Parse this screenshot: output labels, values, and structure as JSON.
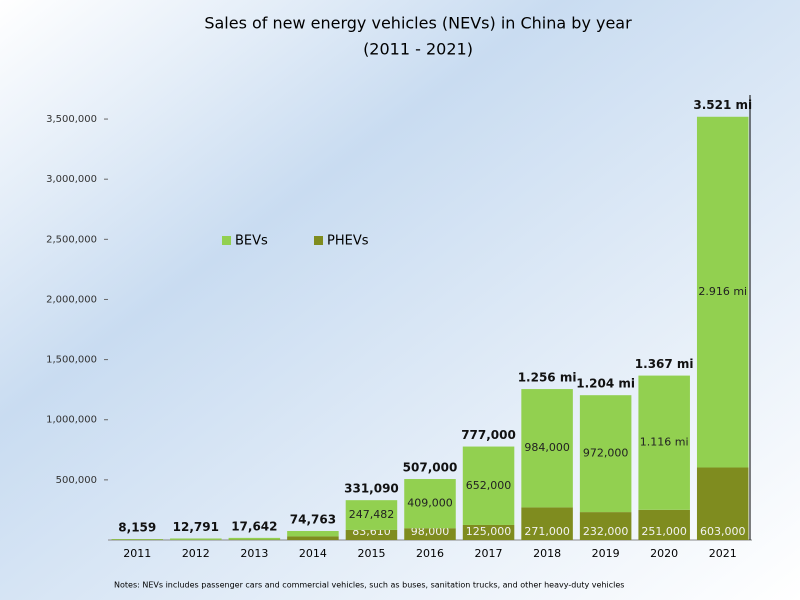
{
  "chart_data": {
    "type": "stacked-bar",
    "title": "Sales of new energy vehicles (NEVs) in China by year",
    "subtitle": "(2011 - 2021)",
    "categories": [
      "2011",
      "2012",
      "2013",
      "2014",
      "2015",
      "2016",
      "2017",
      "2018",
      "2019",
      "2020",
      "2021"
    ],
    "series": [
      {
        "name": "PHEVs",
        "color": "#7f8c1f",
        "values": [
          2580,
          1416,
          3038,
          29715,
          83610,
          98000,
          125000,
          271000,
          232000,
          251000,
          603000
        ],
        "value_labels": [
          null,
          null,
          null,
          null,
          "83,610",
          "98,000",
          "125,000",
          "271,000",
          "232,000",
          "251,000",
          "603,000"
        ]
      },
      {
        "name": "BEVs",
        "color": "#92d050",
        "values": [
          5579,
          11375,
          14604,
          45048,
          247482,
          409000,
          652000,
          984000,
          972000,
          1116000,
          2916000
        ],
        "value_labels": [
          null,
          null,
          null,
          null,
          "247,482",
          "409,000",
          "652,000",
          "984,000",
          "972,000",
          "1.116 mi",
          "2.916 mi"
        ]
      }
    ],
    "totals": [
      8159,
      12791,
      17642,
      74763,
      331090,
      507000,
      777000,
      1256000,
      1204000,
      1367000,
      3521000
    ],
    "total_labels": [
      "8,159",
      "12,791",
      "17,642",
      "74,763",
      "331,090",
      "507,000",
      "777,000",
      "1.256 mi",
      "1.204 mi",
      "1.367 mi",
      "3.521 mi"
    ],
    "ylim": [
      0,
      3700000
    ],
    "yticks": [
      {
        "value": 500000,
        "label": "500,000"
      },
      {
        "value": 1000000,
        "label": "1,000,000"
      },
      {
        "value": 1500000,
        "label": "1,500,000"
      },
      {
        "value": 2000000,
        "label": "2,000,000"
      },
      {
        "value": 2500000,
        "label": "2,500,000"
      },
      {
        "value": 3000000,
        "label": "3,000,000"
      },
      {
        "value": 3500000,
        "label": "3,500,000"
      }
    ],
    "note": "Notes: NEVs includes passenger cars and commercial vehicles, such as buses, sanitation trucks, and other heavy-duty vehicles"
  }
}
